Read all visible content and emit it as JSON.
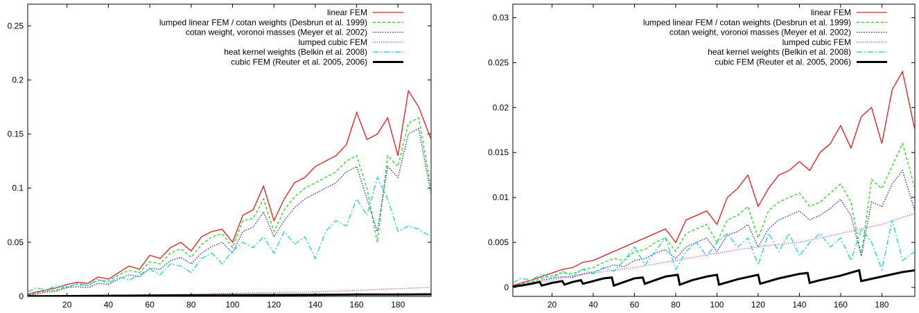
{
  "chart_data": [
    {
      "type": "line",
      "xlabel": "",
      "ylabel": "",
      "xlim": [
        1,
        196
      ],
      "ylim": [
        0,
        0.27
      ],
      "xticks": [
        20,
        40,
        60,
        80,
        100,
        120,
        140,
        160,
        180
      ],
      "yticks": [
        0,
        0.05,
        0.1,
        0.15,
        0.2,
        0.25
      ],
      "ytick_labels": [
        "0",
        "0.05",
        "0.1",
        "0.15",
        "0.2",
        "0.25"
      ],
      "legend_position": "top-right",
      "grid": false,
      "series": [
        {
          "name": "linear FEM",
          "color": "#e41a1c",
          "dash": "solid",
          "width": 1.3,
          "x": [
            1,
            5,
            10,
            15,
            20,
            25,
            30,
            35,
            40,
            45,
            50,
            55,
            60,
            65,
            70,
            75,
            80,
            85,
            90,
            95,
            100,
            105,
            110,
            115,
            120,
            125,
            130,
            135,
            140,
            145,
            150,
            155,
            160,
            165,
            170,
            175,
            180,
            185,
            190,
            196
          ],
          "y": [
            0.002,
            0.004,
            0.006,
            0.008,
            0.011,
            0.013,
            0.012,
            0.018,
            0.016,
            0.022,
            0.028,
            0.025,
            0.038,
            0.035,
            0.045,
            0.05,
            0.042,
            0.055,
            0.06,
            0.062,
            0.05,
            0.075,
            0.08,
            0.102,
            0.07,
            0.09,
            0.105,
            0.11,
            0.12,
            0.125,
            0.13,
            0.14,
            0.17,
            0.145,
            0.15,
            0.165,
            0.13,
            0.19,
            0.175,
            0.145
          ]
        },
        {
          "name": "lumped linear FEM / cotan weights (Desbrun et al. 1999)",
          "color": "#22d61e",
          "dash": "4,3",
          "width": 1.3,
          "x": [
            1,
            5,
            10,
            15,
            20,
            25,
            30,
            35,
            40,
            45,
            50,
            55,
            60,
            65,
            70,
            75,
            80,
            85,
            90,
            95,
            100,
            105,
            110,
            115,
            120,
            125,
            130,
            135,
            140,
            145,
            150,
            155,
            160,
            165,
            170,
            175,
            180,
            185,
            190,
            196
          ],
          "y": [
            0.001,
            0.003,
            0.005,
            0.006,
            0.009,
            0.011,
            0.01,
            0.015,
            0.014,
            0.02,
            0.024,
            0.022,
            0.032,
            0.03,
            0.04,
            0.044,
            0.036,
            0.048,
            0.055,
            0.058,
            0.045,
            0.07,
            0.072,
            0.09,
            0.06,
            0.08,
            0.092,
            0.1,
            0.105,
            0.11,
            0.115,
            0.125,
            0.13,
            0.1,
            0.05,
            0.13,
            0.12,
            0.16,
            0.165,
            0.1
          ]
        },
        {
          "name": "cotan weight, voronoi masses (Meyer et al. 2002)",
          "color": "#1f2fd6",
          "dash": "1.5,2",
          "width": 1.4,
          "x": [
            1,
            5,
            10,
            15,
            20,
            25,
            30,
            35,
            40,
            45,
            50,
            55,
            60,
            65,
            70,
            75,
            80,
            85,
            90,
            95,
            100,
            105,
            110,
            115,
            120,
            125,
            130,
            135,
            140,
            145,
            150,
            155,
            160,
            165,
            170,
            175,
            180,
            185,
            190,
            196
          ],
          "y": [
            0.001,
            0.002,
            0.004,
            0.005,
            0.008,
            0.009,
            0.008,
            0.012,
            0.011,
            0.016,
            0.02,
            0.018,
            0.026,
            0.025,
            0.033,
            0.036,
            0.03,
            0.04,
            0.046,
            0.05,
            0.04,
            0.06,
            0.064,
            0.078,
            0.055,
            0.07,
            0.082,
            0.09,
            0.095,
            0.1,
            0.105,
            0.115,
            0.12,
            0.09,
            0.06,
            0.12,
            0.11,
            0.15,
            0.155,
            0.095
          ]
        },
        {
          "name": "lumped cubic FEM",
          "color": "#d81ad8",
          "dash": "1,2",
          "width": 1.2,
          "x": [
            1,
            20,
            40,
            60,
            80,
            100,
            120,
            140,
            160,
            180,
            196
          ],
          "y": [
            0.0002,
            0.0006,
            0.001,
            0.0015,
            0.002,
            0.003,
            0.0035,
            0.004,
            0.0055,
            0.0072,
            0.0082
          ]
        },
        {
          "name": "heat kernel weights (Belkin et al. 2008)",
          "color": "#17d4d4",
          "dash": "8,3,2,3",
          "width": 1.3,
          "x": [
            1,
            5,
            10,
            15,
            20,
            25,
            30,
            35,
            40,
            45,
            50,
            55,
            60,
            65,
            70,
            75,
            80,
            85,
            90,
            95,
            100,
            105,
            110,
            115,
            120,
            125,
            130,
            135,
            140,
            145,
            150,
            155,
            160,
            165,
            170,
            175,
            180,
            185,
            190,
            196
          ],
          "y": [
            0.004,
            0.008,
            0.006,
            0.01,
            0.008,
            0.012,
            0.01,
            0.016,
            0.012,
            0.018,
            0.015,
            0.02,
            0.025,
            0.02,
            0.03,
            0.028,
            0.022,
            0.035,
            0.04,
            0.03,
            0.042,
            0.05,
            0.045,
            0.055,
            0.04,
            0.06,
            0.048,
            0.055,
            0.035,
            0.06,
            0.07,
            0.065,
            0.09,
            0.075,
            0.11,
            0.09,
            0.06,
            0.065,
            0.062,
            0.055
          ]
        },
        {
          "name": "cubic FEM (Reuter et al. 2005, 2006)",
          "color": "#000000",
          "dash": "solid",
          "width": 3,
          "x": [
            1,
            20,
            40,
            60,
            80,
            100,
            120,
            140,
            160,
            180,
            196
          ],
          "y": [
            0.0001,
            0.0003,
            0.0006,
            0.0008,
            0.001,
            0.0012,
            0.0013,
            0.0015,
            0.0017,
            0.0018,
            0.0019
          ]
        }
      ]
    },
    {
      "type": "line",
      "xlabel": "",
      "ylabel": "",
      "xlim": [
        1,
        196
      ],
      "ylim": [
        -0.001,
        0.0315
      ],
      "xticks": [
        20,
        40,
        60,
        80,
        100,
        120,
        140,
        160,
        180
      ],
      "yticks": [
        0,
        0.005,
        0.01,
        0.015,
        0.02,
        0.025,
        0.03
      ],
      "ytick_labels": [
        "0",
        "0.005",
        "0.01",
        "0.015",
        "0.02",
        "0.025",
        "0.03"
      ],
      "legend_position": "top-right",
      "grid": false,
      "series": [
        {
          "name": "linear FEM",
          "color": "#e41a1c",
          "dash": "solid",
          "width": 1.3,
          "x": [
            1,
            5,
            10,
            15,
            20,
            25,
            30,
            35,
            40,
            45,
            50,
            55,
            60,
            65,
            70,
            75,
            80,
            85,
            90,
            95,
            100,
            105,
            110,
            115,
            120,
            125,
            130,
            135,
            140,
            145,
            150,
            155,
            160,
            165,
            170,
            175,
            180,
            185,
            190,
            196
          ],
          "y": [
            0.0002,
            0.0005,
            0.0008,
            0.0012,
            0.0016,
            0.002,
            0.0022,
            0.0028,
            0.003,
            0.0035,
            0.004,
            0.0045,
            0.005,
            0.0055,
            0.006,
            0.0065,
            0.005,
            0.0075,
            0.008,
            0.0085,
            0.007,
            0.01,
            0.011,
            0.0125,
            0.009,
            0.011,
            0.0125,
            0.013,
            0.014,
            0.013,
            0.015,
            0.016,
            0.018,
            0.0155,
            0.019,
            0.02,
            0.016,
            0.022,
            0.024,
            0.0175
          ]
        },
        {
          "name": "lumped linear FEM / cotan weights (Desbrun et al. 1999)",
          "color": "#22d61e",
          "dash": "4,3",
          "width": 1.3,
          "x": [
            1,
            5,
            10,
            15,
            20,
            25,
            30,
            35,
            40,
            45,
            50,
            55,
            60,
            65,
            70,
            75,
            80,
            85,
            90,
            95,
            100,
            105,
            110,
            115,
            120,
            125,
            130,
            135,
            140,
            145,
            150,
            155,
            160,
            165,
            170,
            175,
            180,
            185,
            190,
            196
          ],
          "y": [
            0.0001,
            0.0004,
            0.0006,
            0.001,
            0.0013,
            0.0016,
            0.0015,
            0.002,
            0.0022,
            0.0028,
            0.0032,
            0.003,
            0.004,
            0.0042,
            0.005,
            0.0055,
            0.004,
            0.006,
            0.0065,
            0.007,
            0.005,
            0.0075,
            0.008,
            0.009,
            0.0055,
            0.0085,
            0.0095,
            0.01,
            0.0105,
            0.009,
            0.0095,
            0.0105,
            0.0115,
            0.0095,
            0.0035,
            0.012,
            0.011,
            0.0135,
            0.016,
            0.011
          ]
        },
        {
          "name": "cotan weight, voronoi masses (Meyer et al. 2002)",
          "color": "#1f2fd6",
          "dash": "1.5,2",
          "width": 1.4,
          "x": [
            1,
            5,
            10,
            15,
            20,
            25,
            30,
            35,
            40,
            45,
            50,
            55,
            60,
            65,
            70,
            75,
            80,
            85,
            90,
            95,
            100,
            105,
            110,
            115,
            120,
            125,
            130,
            135,
            140,
            145,
            150,
            155,
            160,
            165,
            170,
            175,
            180,
            185,
            190,
            196
          ],
          "y": [
            0.0001,
            0.0003,
            0.0005,
            0.0008,
            0.001,
            0.0012,
            0.0011,
            0.0015,
            0.0017,
            0.0021,
            0.0025,
            0.0023,
            0.003,
            0.0032,
            0.0038,
            0.0042,
            0.0032,
            0.0045,
            0.005,
            0.0055,
            0.004,
            0.0058,
            0.0062,
            0.007,
            0.0045,
            0.0065,
            0.0075,
            0.008,
            0.0085,
            0.0075,
            0.008,
            0.0088,
            0.0098,
            0.008,
            0.0035,
            0.0095,
            0.009,
            0.0115,
            0.013,
            0.0085
          ]
        },
        {
          "name": "lumped cubic FEM",
          "color": "#d81ad8",
          "dash": "1,2",
          "width": 1.2,
          "x": [
            1,
            10,
            20,
            30,
            40,
            50,
            60,
            70,
            80,
            90,
            100,
            110,
            120,
            130,
            140,
            150,
            160,
            170,
            180,
            190,
            196
          ],
          "y": [
            0.0001,
            0.0004,
            0.0008,
            0.0013,
            0.0016,
            0.0019,
            0.0022,
            0.0026,
            0.003,
            0.0034,
            0.0038,
            0.0042,
            0.0045,
            0.0048,
            0.005,
            0.0055,
            0.006,
            0.0065,
            0.007,
            0.0078,
            0.0082
          ]
        },
        {
          "name": "heat kernel weights (Belkin et al. 2008)",
          "color": "#17d4d4",
          "dash": "8,3,2,3",
          "width": 1.3,
          "x": [
            1,
            5,
            10,
            15,
            20,
            25,
            30,
            35,
            40,
            45,
            50,
            55,
            60,
            65,
            70,
            75,
            80,
            85,
            90,
            95,
            100,
            105,
            110,
            115,
            120,
            125,
            130,
            135,
            140,
            145,
            150,
            155,
            160,
            165,
            170,
            175,
            180,
            185,
            190,
            196
          ],
          "y": [
            0.0005,
            0.001,
            0.0008,
            0.0015,
            0.001,
            0.0018,
            0.0012,
            0.002,
            0.0015,
            0.0022,
            0.0018,
            0.003,
            0.0045,
            0.0025,
            0.004,
            0.0055,
            0.002,
            0.004,
            0.005,
            0.0035,
            0.005,
            0.006,
            0.0045,
            0.0055,
            0.0025,
            0.006,
            0.004,
            0.006,
            0.0035,
            0.005,
            0.006,
            0.0045,
            0.0055,
            0.003,
            0.0065,
            0.005,
            0.002,
            0.0075,
            0.003,
            0.004
          ]
        },
        {
          "name": "cubic FEM (Reuter et al. 2005, 2006)",
          "color": "#000000",
          "dash": "solid",
          "width": 3,
          "x": [
            1,
            5,
            10,
            14,
            15,
            20,
            25,
            26,
            30,
            34,
            35,
            40,
            45,
            49,
            50,
            55,
            60,
            64,
            65,
            70,
            75,
            81,
            82,
            88,
            95,
            100,
            101,
            110,
            120,
            121,
            130,
            140,
            144,
            145,
            150,
            160,
            169,
            170,
            180,
            190,
            196
          ],
          "y": [
            0.0001,
            0.0002,
            0.0004,
            0.0006,
            0.0002,
            0.0005,
            0.0007,
            0.0003,
            0.0006,
            0.0008,
            0.0004,
            0.0007,
            0.001,
            0.0011,
            0.0002,
            0.0006,
            0.001,
            0.0011,
            0.0004,
            0.0008,
            0.0012,
            0.0014,
            0.0003,
            0.0008,
            0.0012,
            0.0014,
            0.0003,
            0.0009,
            0.0014,
            0.0004,
            0.001,
            0.0015,
            0.0016,
            0.0005,
            0.0008,
            0.0013,
            0.0019,
            0.0007,
            0.0012,
            0.0017,
            0.0019
          ]
        }
      ]
    }
  ]
}
